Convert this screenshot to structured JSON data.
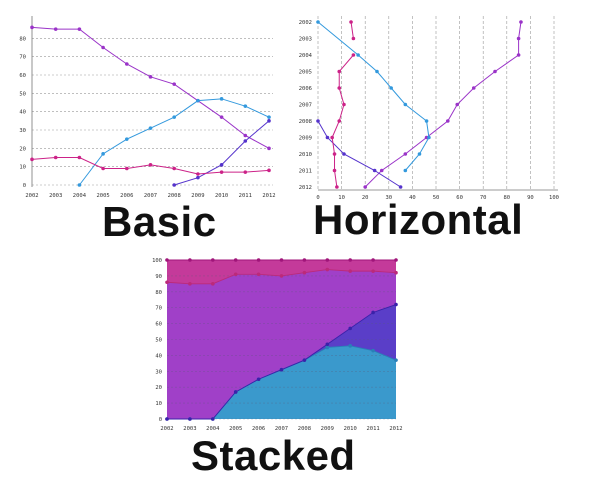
{
  "captions": {
    "basic": "Basic",
    "horizontal": "Horizontal",
    "stacked": "Stacked"
  },
  "colors": {
    "magenta": "#c0309a",
    "purple": "#9333c7",
    "violet": "#5533cc",
    "blue": "#3399dd",
    "pink": "#cc2288"
  },
  "chart_data": [
    {
      "type": "line",
      "title": "Basic",
      "categories": [
        "2002",
        "2003",
        "2004",
        "2005",
        "2006",
        "2007",
        "2008",
        "2009",
        "2010",
        "2011",
        "2012"
      ],
      "ylim": [
        0,
        90
      ],
      "yticks": [
        "0",
        "10",
        "20",
        "30",
        "40",
        "50",
        "60",
        "70",
        "80"
      ],
      "grid": true,
      "series": [
        {
          "color": "#9a33c8",
          "values": [
            86,
            85,
            85,
            75,
            66,
            59,
            55,
            46,
            37,
            27,
            20
          ]
        },
        {
          "color": "#3399dd",
          "values": [
            null,
            null,
            0,
            17,
            25,
            31,
            37,
            46,
            47,
            43,
            37
          ]
        },
        {
          "color": "#5533cc",
          "values": [
            null,
            null,
            null,
            null,
            null,
            null,
            0,
            4,
            11,
            24,
            35
          ]
        },
        {
          "color": "#cc2288",
          "values": [
            14,
            15,
            15,
            9,
            9,
            11,
            9,
            6,
            7,
            7,
            8
          ]
        }
      ]
    },
    {
      "type": "line",
      "title": "Horizontal",
      "orientation": "horizontal",
      "categories": [
        "2002",
        "2003",
        "2004",
        "2005",
        "2006",
        "2007",
        "2008",
        "2009",
        "2010",
        "2011",
        "2012"
      ],
      "xlim": [
        0,
        100
      ],
      "xticks": [
        "0",
        "10",
        "20",
        "30",
        "40",
        "50",
        "60",
        "70",
        "80",
        "90",
        "100"
      ],
      "grid": true,
      "series": [
        {
          "color": "#9a33c8",
          "values": [
            86,
            85,
            85,
            75,
            66,
            59,
            55,
            46,
            37,
            27,
            20
          ]
        },
        {
          "color": "#3399dd",
          "values": [
            0,
            null,
            17,
            25,
            31,
            37,
            46,
            47,
            43,
            37,
            null
          ]
        },
        {
          "color": "#5533cc",
          "values": [
            null,
            null,
            null,
            null,
            null,
            null,
            0,
            4,
            11,
            24,
            35
          ]
        },
        {
          "color": "#cc2288",
          "values": [
            null,
            null,
            15,
            9,
            9,
            11,
            9,
            6,
            7,
            7,
            8
          ]
        },
        {
          "color": "#cc2288",
          "values": [
            14,
            15,
            null,
            null,
            null,
            null,
            null,
            null,
            null,
            null,
            null
          ]
        }
      ]
    },
    {
      "type": "area",
      "title": "Stacked",
      "stacked": true,
      "categories": [
        "2002",
        "2003",
        "2004",
        "2005",
        "2006",
        "2007",
        "2008",
        "2009",
        "2010",
        "2011",
        "2012"
      ],
      "ylim": [
        0,
        100
      ],
      "yticks": [
        "0",
        "10",
        "20",
        "30",
        "40",
        "50",
        "60",
        "70",
        "80",
        "90",
        "100"
      ],
      "grid": true,
      "series": [
        {
          "color": "#3a99cc",
          "values": [
            0,
            0,
            0,
            17,
            25,
            31,
            37,
            45,
            46,
            43,
            37
          ]
        },
        {
          "color": "#5a3ec8",
          "values": [
            0,
            0,
            0,
            0,
            0,
            0,
            0,
            2,
            11,
            24,
            35
          ]
        },
        {
          "color": "#a040c8",
          "values": [
            86,
            85,
            85,
            74,
            66,
            59,
            55,
            47,
            36,
            26,
            20
          ]
        },
        {
          "color": "#c43a9a",
          "values": [
            14,
            15,
            15,
            9,
            9,
            10,
            8,
            6,
            7,
            7,
            8
          ]
        }
      ]
    }
  ]
}
